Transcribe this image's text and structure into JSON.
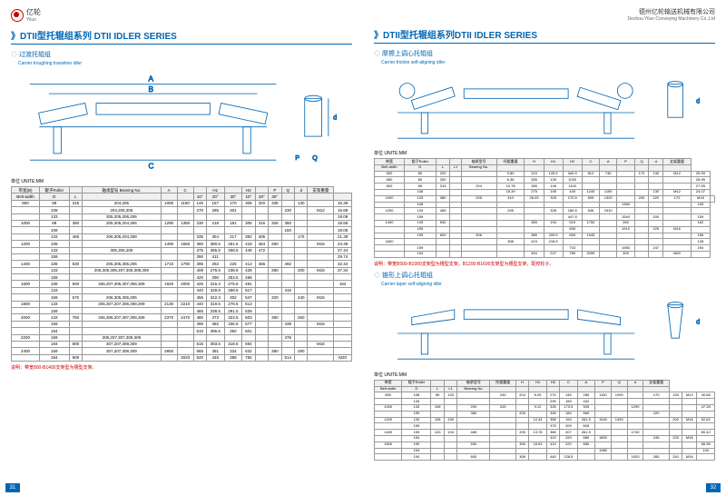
{
  "header": {
    "logo_cn": "亿轮",
    "logo_en": "Yilun",
    "company_cn": "德州亿轮输送机械有限公司",
    "company_en": "Dezhou Yilun Conveying Machinery Co.,Ltd"
  },
  "left": {
    "title": "DTII型托辊组系列 DTII IDLER SERIES",
    "subtitle": "过渡托辊组",
    "subtitle_en": "Carrier troughing transition idler",
    "unit": "单位 UNITE:MM",
    "headers": [
      "带宽(B)",
      "辊子Roller",
      "",
      "轴承型号 Bearing No.",
      "A",
      "C",
      "",
      "H1",
      "",
      "H2",
      "",
      "P",
      "Q",
      "d",
      "支架重量"
    ],
    "sub_headers": [
      "Belt width",
      "D",
      "L",
      "",
      "",
      "",
      "10°",
      "20°",
      "30°",
      "10°",
      "20°",
      "30°",
      "",
      "",
      "",
      ""
    ],
    "rows": [
      [
        "800",
        "89",
        "315",
        "204,205",
        "1090",
        "1150",
        "145",
        "157",
        "170",
        "306",
        "320",
        "335",
        "",
        "130",
        "",
        "16.39"
      ],
      [
        "",
        "108",
        "",
        "204,205,305",
        "",
        "",
        "270",
        "285",
        "301",
        "",
        "",
        "",
        "230",
        "",
        "M12",
        "16.68"
      ],
      [
        "",
        "133",
        "",
        "305,205,306,206",
        "",
        "",
        "",
        "",
        "",
        "",
        "",
        "",
        "",
        "",
        "",
        "18.09"
      ],
      [
        "1000",
        "89",
        "380",
        "205,305,204,306",
        "1290",
        "1350",
        "330",
        "218",
        "181",
        "306",
        "316",
        "326",
        "380",
        "",
        "",
        "18.59"
      ],
      [
        "",
        "108",
        "",
        "",
        "",
        "",
        "",
        "",
        "",
        "",
        "",
        "",
        "160",
        "",
        "",
        "19.08"
      ],
      [
        "",
        "133",
        "465",
        "205,305,204,308",
        "",
        "",
        "335",
        "354",
        "217",
        "392",
        "405",
        "",
        "",
        "175",
        "",
        "21.39"
      ],
      [
        "1200",
        "108",
        "",
        "",
        "1490",
        "1550",
        "360",
        "380.5",
        "251.5",
        "418",
        "484",
        "260",
        "",
        "",
        "M16",
        "24.39"
      ],
      [
        "",
        "133",
        "",
        "305,306,206",
        "",
        "",
        "375",
        "395.5",
        "258.5",
        "448",
        "472",
        "",
        "",
        "",
        "",
        "27.44"
      ],
      [
        "",
        "159",
        "",
        "",
        "",
        "",
        "390",
        "411",
        "",
        "",
        "",
        "",
        "",
        "",
        "",
        "29.74"
      ],
      [
        "1400",
        "108",
        "530",
        "205,305,306,206",
        "1710",
        "1790",
        "395",
        "262",
        "225",
        "412",
        "465",
        "",
        "492",
        "",
        "",
        "32.34"
      ],
      [
        "",
        "133",
        "",
        "206,305,306,207,306,308,309",
        "",
        "",
        "408",
        "276.5",
        "238.5",
        "428",
        "",
        "280",
        "",
        "200",
        "M16",
        "37.34"
      ],
      [
        "",
        "159",
        "",
        "",
        "",
        "",
        "420",
        "290",
        "253.5",
        "458",
        "",
        "",
        "",
        "",
        "",
        ""
      ],
      [
        "1600",
        "108",
        "600",
        "206,207,306,307,308,309",
        "1920",
        "2000",
        "425",
        "316.3",
        "275.5",
        "491",
        "",
        "",
        "",
        "",
        "",
        "162"
      ],
      [
        "",
        "133",
        "",
        "",
        "",
        "",
        "440",
        "329.8",
        "288.5",
        "517",
        "",
        "",
        "416",
        "",
        "",
        ""
      ],
      [
        "",
        "159",
        "670",
        "206,305,306,206",
        "",
        "",
        "455",
        "342.3",
        "302",
        "547",
        "",
        "320",
        "",
        "240",
        "M16",
        ""
      ],
      [
        "1800",
        "133",
        "",
        "206,307,207,306,308,309",
        "2130",
        "2210",
        "440",
        "319.5",
        "278.5",
        "513",
        "",
        "",
        "",
        "",
        "",
        ""
      ],
      [
        "",
        "159",
        "",
        "",
        "",
        "",
        "465",
        "338.5",
        "291.5",
        "539",
        "",
        "",
        "",
        "",
        "",
        ""
      ],
      [
        "2000",
        "133",
        "750",
        "206,306,207,307,308,309",
        "2370",
        "2470",
        "480",
        "373",
        "323.5",
        "503",
        "",
        "350",
        "",
        "260",
        "",
        ""
      ],
      [
        "",
        "159",
        "",
        "",
        "",
        "",
        "495",
        "382",
        "336.5",
        "577",
        "",
        "",
        "438",
        "",
        "M16",
        ""
      ],
      [
        "",
        "194",
        "",
        "",
        "",
        "",
        "510",
        "396.5",
        "350",
        "601",
        "",
        "",
        "",
        "",
        "",
        ""
      ],
      [
        "2200",
        "159",
        "",
        "206,207,307,308,309",
        "",
        "",
        "",
        "",
        "",
        "",
        "",
        "",
        "476",
        "",
        "",
        ""
      ],
      [
        "",
        "194",
        "800",
        "307,207,308,309",
        "",
        "",
        "515",
        "393.5",
        "318.5",
        "594",
        "",
        "",
        "",
        "",
        "M16",
        ""
      ],
      [
        "2400",
        "159",
        "",
        "307,207,308,309",
        "2850",
        "",
        "565",
        "381",
        "334",
        "632",
        "",
        "380",
        "",
        "290",
        "",
        ""
      ],
      [
        "",
        "194",
        "900",
        "",
        "",
        "3020",
        "620",
        "445",
        "388",
        "784",
        "",
        "",
        "514",
        "",
        "",
        "M20"
      ]
    ],
    "note": "说明：带宽800-B1400支架型为槽型支架。",
    "page": "31"
  },
  "right": {
    "title": "DTII型托辊组系列DTII IDLER SERIES",
    "subtitle1": "摩擦上调心托辊组",
    "subtitle1_en": "Carrier friction self-aligning idler",
    "subtitle2": "锥形上调心托辊组",
    "subtitle2_en": "Carrier taper self-aligning idler",
    "unit": "单位 UNITE:MM",
    "t1_headers": [
      "带宽",
      "辊子Roller",
      "",
      "",
      "轴承型号",
      "托辊重量",
      "H",
      "H1",
      "H2",
      "C",
      "A",
      "P",
      "Q",
      "d",
      "支架重量"
    ],
    "t1_sub": [
      "Belt width",
      "D",
      "L",
      "L1",
      "Bearing No.",
      "",
      "",
      "",
      "",
      "",
      "",
      "",
      "",
      "",
      ""
    ],
    "t1_rows": [
      [
        "500",
        "89",
        "200",
        "",
        "",
        "9.89",
        "223",
        "125.5",
        "340.5",
        "812",
        "740",
        "",
        "170",
        "130",
        "M12",
        "25.99"
      ],
      [
        "650",
        "89",
        "250",
        "",
        "",
        "6.36",
        "265",
        "130",
        "1020",
        "",
        "",
        "",
        "",
        "",
        "",
        "28.99"
      ],
      [
        "800",
        "89",
        "315",
        "",
        "204",
        "10.78",
        "285",
        "146",
        "1100",
        "",
        "",
        "",
        "",
        "",
        "",
        "27.55"
      ],
      [
        "",
        "108",
        "",
        "",
        "",
        "18.39",
        "275",
        "159",
        "440",
        "1240",
        "1150",
        "",
        "",
        "130",
        "M12",
        "24.07"
      ],
      [
        "1000",
        "133",
        "380",
        "",
        "205",
        "410",
        "26.03",
        "325",
        "170.5",
        "505",
        "1320",
        "",
        "200",
        "220",
        "170",
        "M16",
        ""
      ],
      [
        "",
        "108",
        "",
        "",
        "",
        "",
        "",
        "",
        "",
        "",
        "",
        "1380",
        "",
        "",
        "",
        "105"
      ],
      [
        "1200",
        "133",
        "465",
        "",
        "",
        "205",
        "",
        "328",
        "180.5",
        "545",
        "1510",
        "",
        "",
        "",
        "",
        ""
      ],
      [
        "",
        "159",
        "",
        "",
        "",
        "",
        "",
        "",
        "447.5",
        "",
        "",
        "1540",
        "",
        "200",
        "",
        "109"
      ],
      [
        "1400",
        "133",
        "530",
        "",
        "",
        "",
        "355",
        "194",
        "515",
        "1750",
        "",
        "260",
        "",
        "",
        "",
        "162"
      ],
      [
        "",
        "159",
        "",
        "",
        "",
        "",
        "",
        "",
        "605",
        "",
        "",
        "1910",
        "",
        "225",
        "M16",
        ""
      ],
      [
        "",
        "159",
        "600",
        "",
        "306",
        "",
        "385",
        "209.5",
        "653",
        "1945",
        "",
        "",
        "",
        "",
        "",
        "156"
      ],
      [
        "1600",
        "",
        "",
        "",
        "",
        "308",
        "419",
        "215.5",
        "",
        "",
        "",
        "",
        "",
        "",
        "",
        "128"
      ],
      [
        "",
        "159",
        "",
        "",
        "",
        "",
        "",
        "",
        "703",
        "",
        "",
        "1980",
        "",
        "247",
        "",
        "194"
      ],
      [
        "",
        "194",
        "",
        "",
        "",
        "",
        "494",
        "247",
        "780",
        "2095",
        "",
        "300",
        "",
        "",
        "M20",
        ""
      ]
    ],
    "t1_note": "说明：带宽B500-B1000支架型为槽型支架。B1200-B1600支架型为槽型支架，配校轮子。",
    "t2_rows": [
      [
        "800",
        "108",
        "89",
        "133",
        "",
        "240",
        "204",
        "6.25",
        "270",
        "145",
        "285",
        "1150",
        "1090",
        "",
        "170",
        "130",
        "M12",
        "40.68"
      ],
      [
        "",
        "133",
        "",
        "",
        "",
        "",
        "",
        "",
        "290",
        "159",
        "432",
        "",
        "",
        "",
        "",
        "",
        "",
        ""
      ],
      [
        "1000",
        "133",
        "108",
        "",
        "200",
        "315",
        "",
        "9.12",
        "325",
        "170.5",
        "505",
        "",
        "",
        "1290",
        "",
        "",
        "",
        "47.28"
      ],
      [
        "",
        "159",
        "",
        "",
        "380",
        "",
        "205",
        "",
        "345",
        "184",
        "565",
        "",
        "",
        "",
        "220",
        "",
        "",
        ""
      ],
      [
        "1200",
        "133",
        "108",
        "159",
        "",
        "",
        "",
        "12.44",
        "355",
        "194",
        "261.5",
        "1540",
        "1490",
        "",
        "",
        "200",
        "M16",
        "62.62"
      ],
      [
        "",
        "159",
        "",
        "",
        "",
        "",
        "",
        "",
        "375",
        "209",
        "605",
        "",
        "",
        "",
        "",
        "",
        "",
        ""
      ],
      [
        "1400",
        "159",
        "133",
        "194",
        "465",
        "",
        "205",
        "13.78",
        "385",
        "207",
        "261.5",
        "",
        "",
        "1740",
        "",
        "",
        "",
        "80.42"
      ],
      [
        "",
        "194",
        "",
        "",
        "",
        "",
        "",
        "",
        "410",
        "220",
        "680",
        "1800",
        "",
        "",
        "245",
        "225",
        "M16",
        ""
      ],
      [
        "1600",
        "159",
        "",
        "",
        "530",
        "",
        "306",
        "16.53",
        "410",
        "220",
        "680",
        "",
        "",
        "",
        "",
        "",
        "",
        "66.96"
      ],
      [
        "",
        "194",
        "",
        "",
        "",
        "",
        "",
        "",
        "",
        "",
        "",
        "1980",
        "",
        "",
        "",
        "",
        "",
        "104"
      ],
      [
        "",
        "194",
        "",
        "",
        "600",
        "",
        "308",
        "",
        "440",
        "228.5",
        "",
        "",
        "",
        "1920",
        "265",
        "240",
        "M16",
        ""
      ]
    ],
    "page": "32"
  }
}
